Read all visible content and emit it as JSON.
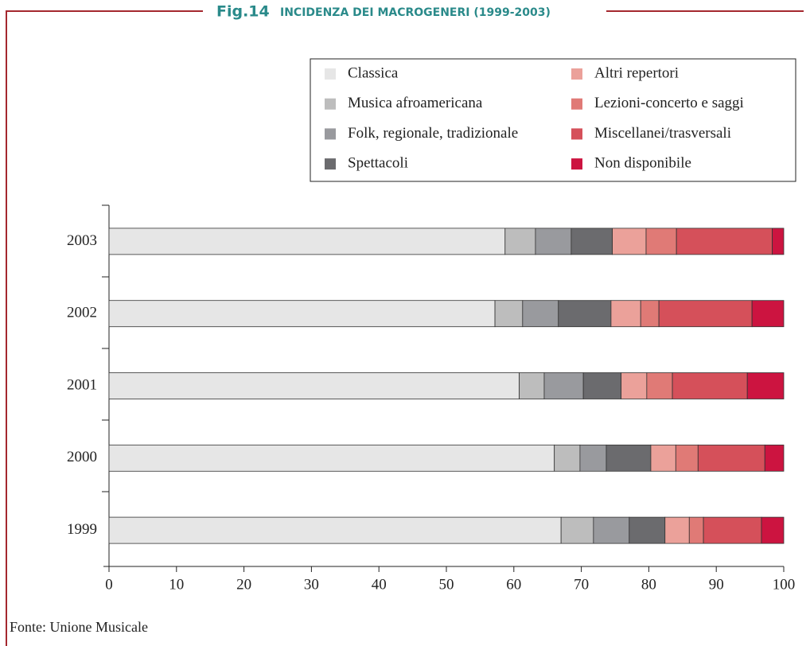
{
  "chart_data": {
    "type": "stacked_barh",
    "figure_label": "Fig.14",
    "title": "INCIDENZA DEI MACROGENERI (1999-2003)",
    "source": "Fonte: Unione Musicale",
    "categories": [
      "2003",
      "2002",
      "2001",
      "2000",
      "1999"
    ],
    "series": [
      {
        "name": "Classica",
        "color": "#e6e6e6",
        "values": [
          58.7,
          57.2,
          60.8,
          66.0,
          67.0
        ]
      },
      {
        "name": "Musica afroamericana",
        "color": "#bdbdbd",
        "values": [
          4.5,
          4.1,
          3.7,
          3.8,
          4.8
        ]
      },
      {
        "name": "Folk, regionale, tradizionale",
        "color": "#999a9e",
        "values": [
          5.3,
          5.3,
          5.8,
          3.9,
          5.3
        ]
      },
      {
        "name": "Spettacoli",
        "color": "#6b6b6e",
        "values": [
          6.1,
          7.8,
          5.6,
          6.6,
          5.3
        ]
      },
      {
        "name": "Altri repertori",
        "color": "#eba19a",
        "values": [
          5.0,
          4.4,
          3.8,
          3.7,
          3.6
        ]
      },
      {
        "name": "Lezioni-concerto e saggi",
        "color": "#e07a76",
        "values": [
          4.5,
          2.7,
          3.8,
          3.3,
          2.1
        ]
      },
      {
        "name": "Miscellanei/trasversali",
        "color": "#d5505a",
        "values": [
          14.2,
          13.8,
          11.1,
          9.9,
          8.6
        ]
      },
      {
        "name": "Non disponibile",
        "color": "#cc1440",
        "values": [
          1.7,
          4.7,
          5.4,
          2.8,
          3.3
        ]
      }
    ],
    "xlim": [
      0,
      100
    ],
    "xticks": [
      0,
      10,
      20,
      30,
      40,
      50,
      60,
      70,
      80,
      90,
      100
    ],
    "legend": "top-right"
  }
}
